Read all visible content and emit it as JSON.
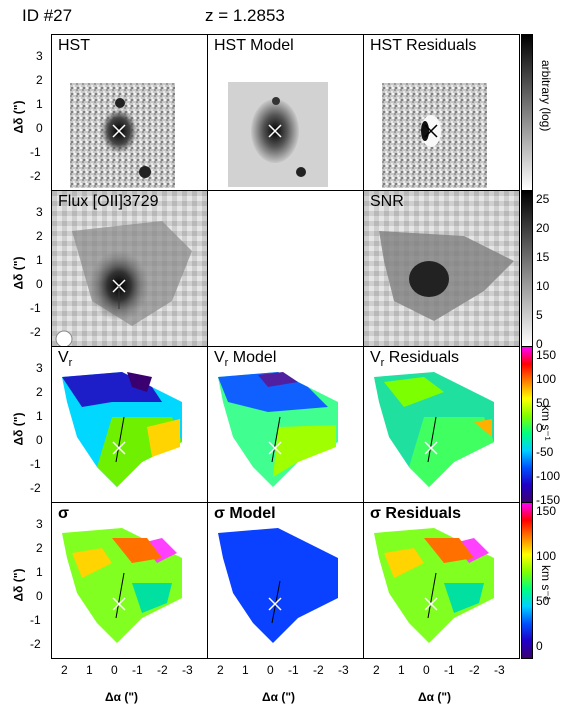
{
  "header": {
    "id_label": "ID  #27",
    "z_label": "z  =  1.2853"
  },
  "rows": [
    {
      "labels": [
        "HST",
        "HST Model",
        "HST Residuals"
      ]
    },
    {
      "labels": [
        "Flux [OII]3729",
        "",
        "SNR"
      ]
    },
    {
      "labels": [
        "V",
        "V",
        "V"
      ],
      "suffix": [
        "",
        " Model",
        " Residuals"
      ]
    },
    {
      "labels": [
        "σ",
        "σ Model",
        "σ Residuals"
      ]
    }
  ],
  "yaxis": {
    "label": "Δδ (\")",
    "ticks": [
      "3",
      "2",
      "1",
      "0",
      "-1",
      "-2"
    ]
  },
  "xaxis": {
    "label": "Δα (\")",
    "ticks": [
      "2",
      "1",
      "0",
      "-1",
      "-2",
      "-3"
    ]
  },
  "colorbars": [
    {
      "label": "arbitrary (log)",
      "ticks": []
    },
    {
      "label": "",
      "ticks": [
        "25",
        "20",
        "15",
        "10",
        "5",
        "0"
      ]
    },
    {
      "label": "km s⁻¹",
      "ticks": [
        "150",
        "100",
        "50",
        "0",
        "-50",
        "-100",
        "-150"
      ]
    },
    {
      "label": "km s⁻¹",
      "ticks": [
        "150",
        "100",
        "50",
        "0"
      ]
    }
  ],
  "colors": {
    "velocity_scale": [
      "#3b0070",
      "#2000c8",
      "#0050ff",
      "#00d0ff",
      "#00ff80",
      "#80ff00",
      "#ffff00",
      "#ff8000",
      "#ff0000",
      "#ff00ff"
    ]
  }
}
